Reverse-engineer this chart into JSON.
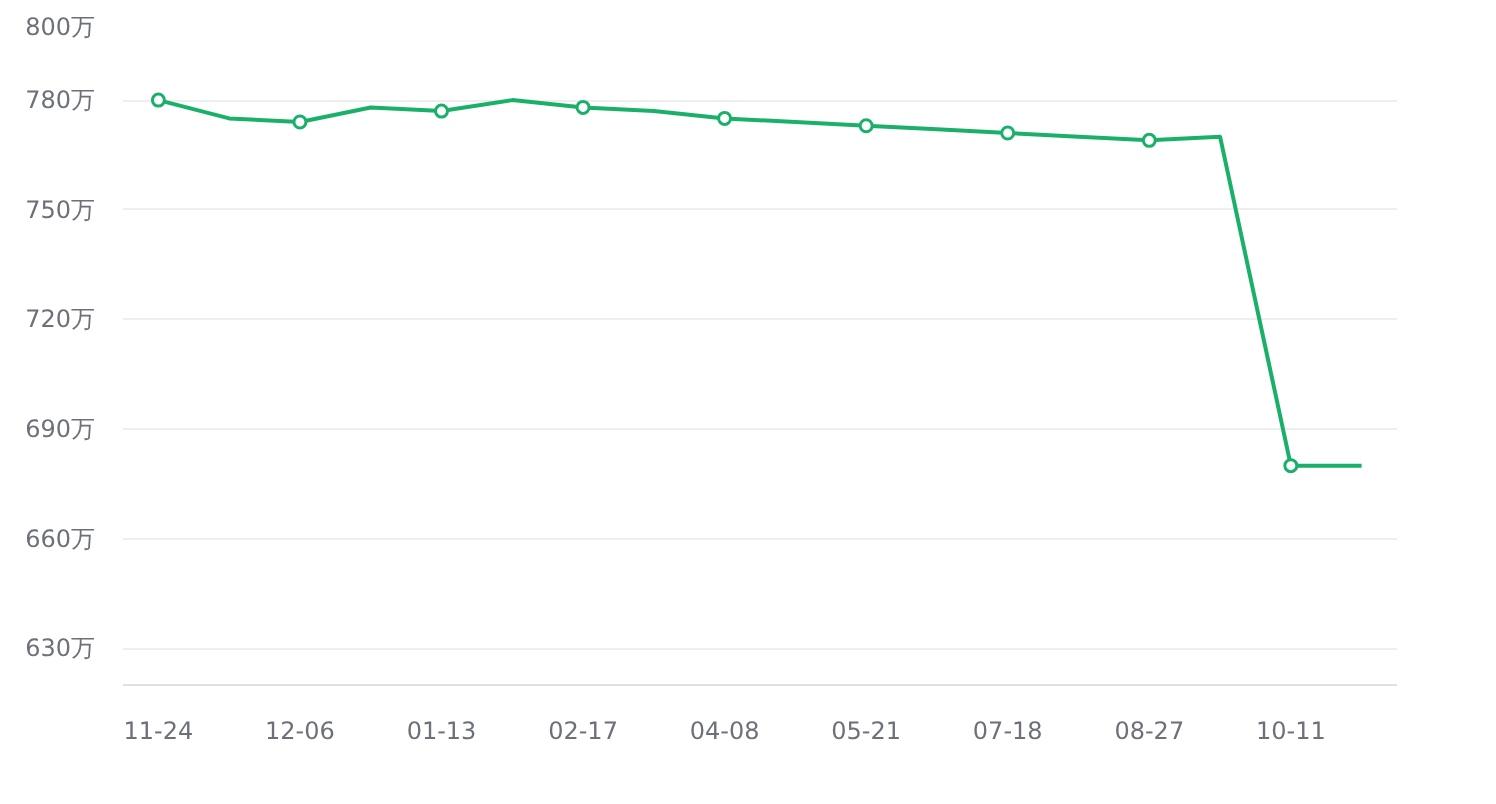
{
  "chart_data": {
    "type": "line",
    "categories": [
      "11-24",
      null,
      "12-06",
      null,
      "01-13",
      null,
      "02-17",
      null,
      "04-08",
      null,
      "05-21",
      null,
      "07-18",
      null,
      "08-27",
      null,
      "10-11",
      null
    ],
    "series": [
      {
        "color": "#1bb06a",
        "values": [
          780,
          775,
          774,
          778,
          777,
          780,
          778,
          777,
          775,
          774,
          773,
          772,
          771,
          770,
          769,
          770,
          680,
          680
        ]
      }
    ],
    "ylim": [
      620,
      800
    ],
    "yticks": [
      {
        "value": 630,
        "label": "630万"
      },
      {
        "value": 660,
        "label": "660万"
      },
      {
        "value": 690,
        "label": "690万"
      },
      {
        "value": 720,
        "label": "720万"
      },
      {
        "value": 750,
        "label": "750万"
      },
      {
        "value": 780,
        "label": "780万"
      },
      {
        "value": 800,
        "label": "800万"
      }
    ],
    "grid": "y",
    "marker": "circle",
    "line_style": "solid"
  }
}
